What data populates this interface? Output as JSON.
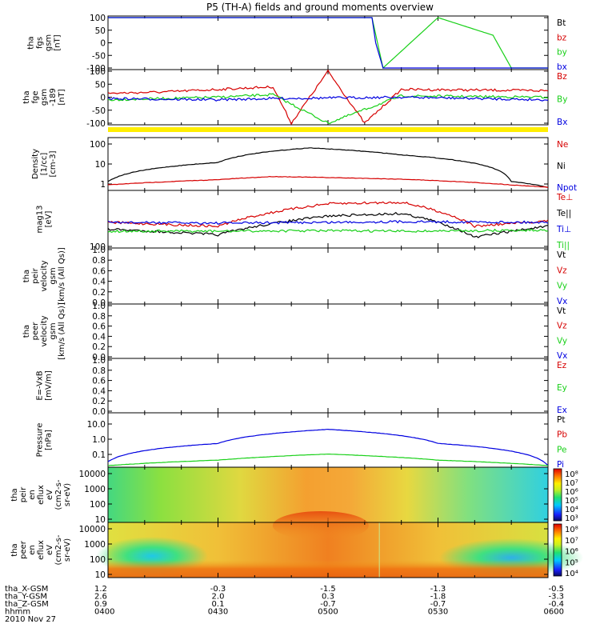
{
  "title": "P5 (TH-A) fields and ground moments overview",
  "colors": {
    "black": "#000000",
    "red": "#d60000",
    "green": "#18d018",
    "blue": "#0000e0",
    "yellow": "#ffff00",
    "bar": "#ffee00"
  },
  "panels": [
    {
      "id": "fgs",
      "ylabel": [
        "tha",
        "fgs",
        "gsm",
        "[nT]"
      ],
      "yticks": [
        "100",
        "50",
        "0",
        "-50",
        "-100"
      ],
      "legend": [
        {
          "text": "Bt",
          "color": "#000000"
        },
        {
          "text": "bz",
          "color": "#d60000"
        },
        {
          "text": "by",
          "color": "#18d018"
        },
        {
          "text": "bx",
          "color": "#0000e0"
        }
      ]
    },
    {
      "id": "fge",
      "ylabel": [
        "tha",
        "fge",
        "gsm",
        "-189",
        "[nT]"
      ],
      "yticks": [
        "100",
        "50",
        "0",
        "-50",
        "-100"
      ],
      "legend": [
        {
          "text": "Bz",
          "color": "#d60000"
        },
        {
          "text": "By",
          "color": "#18d018"
        },
        {
          "text": "Bx",
          "color": "#0000e0"
        }
      ]
    },
    {
      "id": "density",
      "ylabel": [
        "Density",
        "[1/cc]",
        "[cm-3]"
      ],
      "yticks": [
        "100",
        "10",
        "1"
      ],
      "legend": [
        {
          "text": "Ne",
          "color": "#d60000"
        },
        {
          "text": "Ni",
          "color": "#000000"
        },
        {
          "text": "Npot",
          "color": "#0000e0"
        }
      ]
    },
    {
      "id": "temp",
      "ylabel": [
        "mag13",
        "[eV]"
      ],
      "yticks": [
        "100"
      ],
      "legend": [
        {
          "text": "Te⊥",
          "color": "#d60000"
        },
        {
          "text": "Te||",
          "color": "#000000"
        },
        {
          "text": "Ti⊥",
          "color": "#0000e0"
        },
        {
          "text": "Ti||",
          "color": "#18d018"
        }
      ]
    },
    {
      "id": "peir_vel",
      "ylabel": [
        "tha",
        "peir",
        "velocity",
        "gsm",
        "[km/s (All Qs)]"
      ],
      "yticks": [
        "1.0",
        "0.8",
        "0.6",
        "0.4",
        "0.2",
        "0.0"
      ],
      "legend": [
        {
          "text": "Vt",
          "color": "#000000"
        },
        {
          "text": "Vz",
          "color": "#d60000"
        },
        {
          "text": "Vy",
          "color": "#18d018"
        },
        {
          "text": "Vx",
          "color": "#0000e0"
        }
      ]
    },
    {
      "id": "peer_vel",
      "ylabel": [
        "tha",
        "peer",
        "velocity",
        "gsm",
        "[km/s (All Qs)]"
      ],
      "yticks": [
        "1.0",
        "0.8",
        "0.6",
        "0.4",
        "0.2",
        "0.0"
      ],
      "legend": [
        {
          "text": "Vt",
          "color": "#000000"
        },
        {
          "text": "Vz",
          "color": "#d60000"
        },
        {
          "text": "Vy",
          "color": "#18d018"
        },
        {
          "text": "Vx",
          "color": "#0000e0"
        }
      ]
    },
    {
      "id": "efield",
      "ylabel": [
        "E=-VxB",
        "[mV/m]"
      ],
      "yticks": [
        "1.0",
        "0.8",
        "0.6",
        "0.4",
        "0.2",
        "0.0"
      ],
      "legend": [
        {
          "text": "Ez",
          "color": "#d60000"
        },
        {
          "text": "Ey",
          "color": "#18d018"
        },
        {
          "text": "Ex",
          "color": "#0000e0"
        }
      ]
    },
    {
      "id": "pressure",
      "ylabel": [
        "Pressure",
        "[nPa]"
      ],
      "yticks": [
        "10.0",
        "1.0",
        "0.1"
      ],
      "legend": [
        {
          "text": "Pt",
          "color": "#000000"
        },
        {
          "text": "Pb",
          "color": "#d60000"
        },
        {
          "text": "Pe",
          "color": "#18d018"
        },
        {
          "text": "Pi",
          "color": "#0000e0"
        }
      ]
    },
    {
      "id": "peir_spec",
      "ylabel": [
        "tha",
        "peir",
        "en",
        "eflux",
        "eV",
        "(cm2-s-",
        "sr-eV)"
      ],
      "yticks": [
        "10000",
        "1000",
        "100",
        "10"
      ],
      "cbar": [
        "10⁸",
        "10⁷",
        "10⁶",
        "10⁵",
        "10⁴",
        "10³"
      ]
    },
    {
      "id": "peer_spec",
      "ylabel": [
        "tha",
        "peer",
        "en",
        "eflux",
        "eV",
        "(cm2-s-",
        "sr-eV)"
      ],
      "yticks": [
        "10000",
        "1000",
        "100",
        "10"
      ],
      "cbar": [
        "10⁸",
        "10⁷",
        "10⁶",
        "10⁵",
        "10⁴"
      ]
    }
  ],
  "footer": {
    "row_labels": [
      "tha_X-GSM",
      "tha_Y-GSM",
      "tha_Z-GSM",
      "hhmm"
    ],
    "date": "2010 Nov 27",
    "columns": [
      {
        "x": "1.2",
        "y": "2.6",
        "z": "0.9",
        "t": "0400"
      },
      {
        "x": "-0.3",
        "y": "2.0",
        "z": "0.1",
        "t": "0430"
      },
      {
        "x": "-1.5",
        "y": "0.3",
        "z": "-0.7",
        "t": "0500"
      },
      {
        "x": "-1.3",
        "y": "-1.8",
        "z": "-0.7",
        "t": "0530"
      },
      {
        "x": "-0.5",
        "y": "-3.3",
        "z": "-0.4",
        "t": "0600"
      }
    ]
  },
  "chart_data": {
    "type": "line",
    "title": "P5 (TH-A) fields and ground moments overview",
    "x_axis": {
      "label": "hhmm",
      "ticks": [
        "0400",
        "0430",
        "0500",
        "0530",
        "0600"
      ],
      "range": [
        "0400",
        "0600"
      ]
    },
    "date": "2010 Nov 27",
    "panels": [
      {
        "name": "tha fgs gsm [nT]",
        "ylim": [
          -100,
          100
        ],
        "series": [
          {
            "name": "by",
            "x": [
              "0512",
              "0515",
              "0530",
              "0545",
              "0550"
            ],
            "values": [
              100,
              -100,
              100,
              30,
              -100
            ]
          },
          {
            "name": "bx",
            "x": [
              "0512",
              "0513",
              "0515"
            ],
            "values": [
              100,
              0,
              -100
            ]
          }
        ]
      },
      {
        "name": "tha fge gsm -189 [nT]",
        "ylim": [
          -100,
          100
        ],
        "series": [
          {
            "name": "Bz",
            "x": [
              "0400",
              "0415",
              "0430",
              "0445",
              "0450",
              "0455",
              "0500",
              "0510",
              "0520",
              "0600"
            ],
            "values": [
              15,
              20,
              30,
              40,
              -100,
              0,
              100,
              -100,
              30,
              25
            ]
          },
          {
            "name": "By",
            "x": [
              "0400",
              "0430",
              "0445",
              "0500",
              "0520",
              "0600"
            ],
            "values": [
              -10,
              0,
              10,
              -100,
              5,
              0
            ]
          },
          {
            "name": "Bx",
            "x": [
              "0400",
              "0430",
              "0445",
              "0520",
              "0600"
            ],
            "values": [
              -5,
              -10,
              -5,
              0,
              -10
            ]
          }
        ]
      },
      {
        "name": "Density [1/cc]",
        "ylim": [
          0.5,
          200
        ],
        "log": true,
        "series": [
          {
            "name": "Ni",
            "x": [
              "0400",
              "0430",
              "0455",
              "0520",
              "0550",
              "0600"
            ],
            "values": [
              1.2,
              12,
              70,
              30,
              1.2,
              0.6
            ]
          },
          {
            "name": "Ne",
            "x": [
              "0400",
              "0430",
              "0445",
              "0520",
              "0550",
              "0600"
            ],
            "values": [
              0.8,
              1.5,
              2.2,
              1.6,
              0.8,
              0.6
            ]
          }
        ]
      },
      {
        "name": "mag13 [eV]",
        "series": [
          {
            "name": "Te⊥",
            "x": [
              "0400",
              "0430",
              "0500",
              "0520",
              "0540",
              "0600"
            ],
            "values": [
              300,
              250,
              700,
              750,
              250,
              320
            ]
          },
          {
            "name": "Te||",
            "x": [
              "0400",
              "0430",
              "0500",
              "0520",
              "0540",
              "0600"
            ],
            "values": [
              220,
              170,
              400,
              450,
              150,
              250
            ]
          },
          {
            "name": "Ti⊥",
            "x": [
              "0400",
              "0430",
              "0500",
              "0520",
              "0600"
            ],
            "values": [
              300,
              290,
              300,
              310,
              300
            ]
          },
          {
            "name": "Ti||",
            "x": [
              "0400",
              "0430",
              "0500",
              "0520",
              "0600"
            ],
            "values": [
              200,
              200,
              205,
              200,
              210
            ]
          }
        ]
      },
      {
        "name": "Pressure [nPa]",
        "ylim": [
          0.05,
          20
        ],
        "log": true,
        "series": [
          {
            "name": "Pi",
            "x": [
              "0400",
              "0430",
              "0500",
              "0530",
              "0600"
            ],
            "values": [
              0.05,
              0.5,
              3,
              0.5,
              0.03
            ]
          },
          {
            "name": "Pe",
            "x": [
              "0400",
              "0430",
              "0500",
              "0530",
              "0600"
            ],
            "values": [
              0.03,
              0.06,
              0.13,
              0.06,
              0.03
            ]
          }
        ]
      }
    ]
  }
}
